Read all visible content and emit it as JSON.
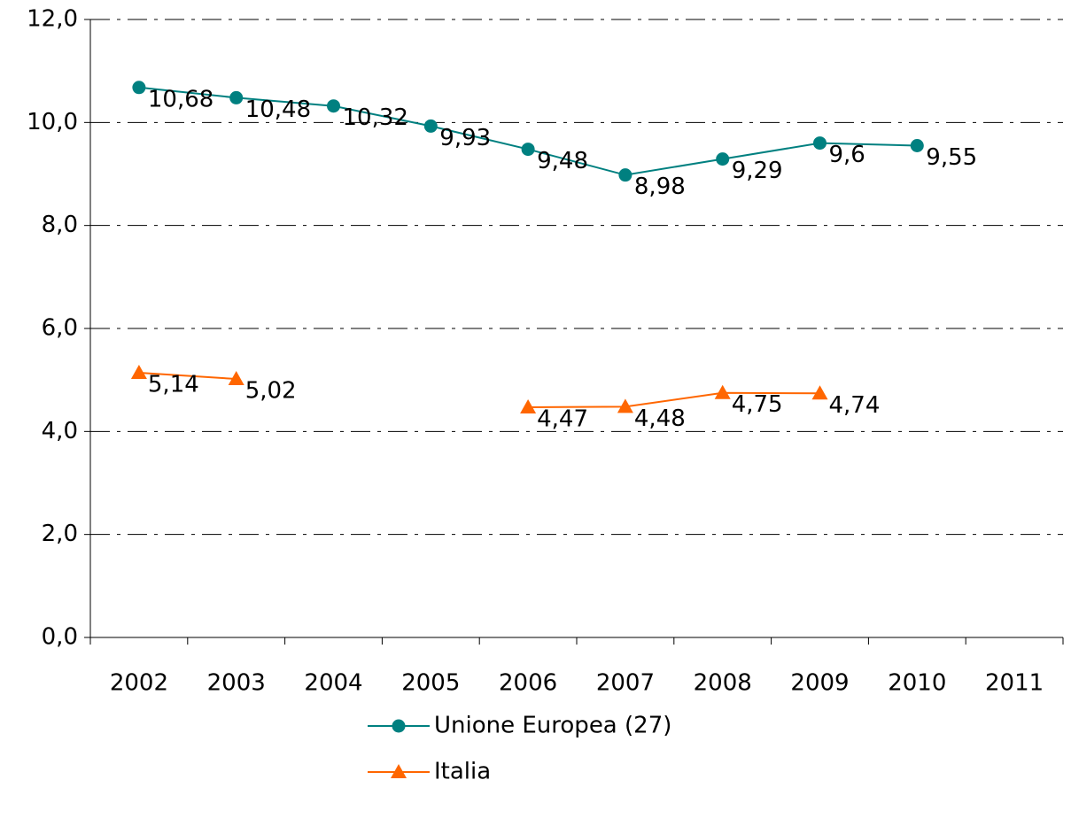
{
  "chart_data": {
    "type": "line",
    "categories": [
      "2002",
      "2003",
      "2004",
      "2005",
      "2006",
      "2007",
      "2008",
      "2009",
      "2010",
      "2011"
    ],
    "series": [
      {
        "name": "Unione Europea (27)",
        "color": "#008080",
        "marker": "circle",
        "values": [
          10.68,
          10.48,
          10.32,
          9.93,
          9.48,
          8.98,
          9.29,
          9.6,
          9.55,
          null
        ],
        "value_labels": [
          "10,68",
          "10,48",
          "10,32",
          "9,93",
          "9,48",
          "8,98",
          "9,29",
          "9,6",
          "9,55",
          null
        ]
      },
      {
        "name": "Italia",
        "color": "#ff6600",
        "marker": "triangle",
        "values": [
          5.14,
          5.02,
          null,
          null,
          4.47,
          4.48,
          4.75,
          4.74,
          null,
          null
        ],
        "value_labels": [
          "5,14",
          "5,02",
          null,
          null,
          "4,47",
          "4,48",
          "4,75",
          "4,74",
          null,
          null
        ]
      }
    ],
    "ylim": [
      0,
      12
    ],
    "yticks": [
      {
        "value": 0,
        "label": "0,0"
      },
      {
        "value": 2,
        "label": "2,0"
      },
      {
        "value": 4,
        "label": "4,0"
      },
      {
        "value": 6,
        "label": "6,0"
      },
      {
        "value": 8,
        "label": "8,0"
      },
      {
        "value": 10,
        "label": "10,0"
      },
      {
        "value": 12,
        "label": "12,0"
      }
    ],
    "grid": true,
    "legend": "bottom"
  }
}
